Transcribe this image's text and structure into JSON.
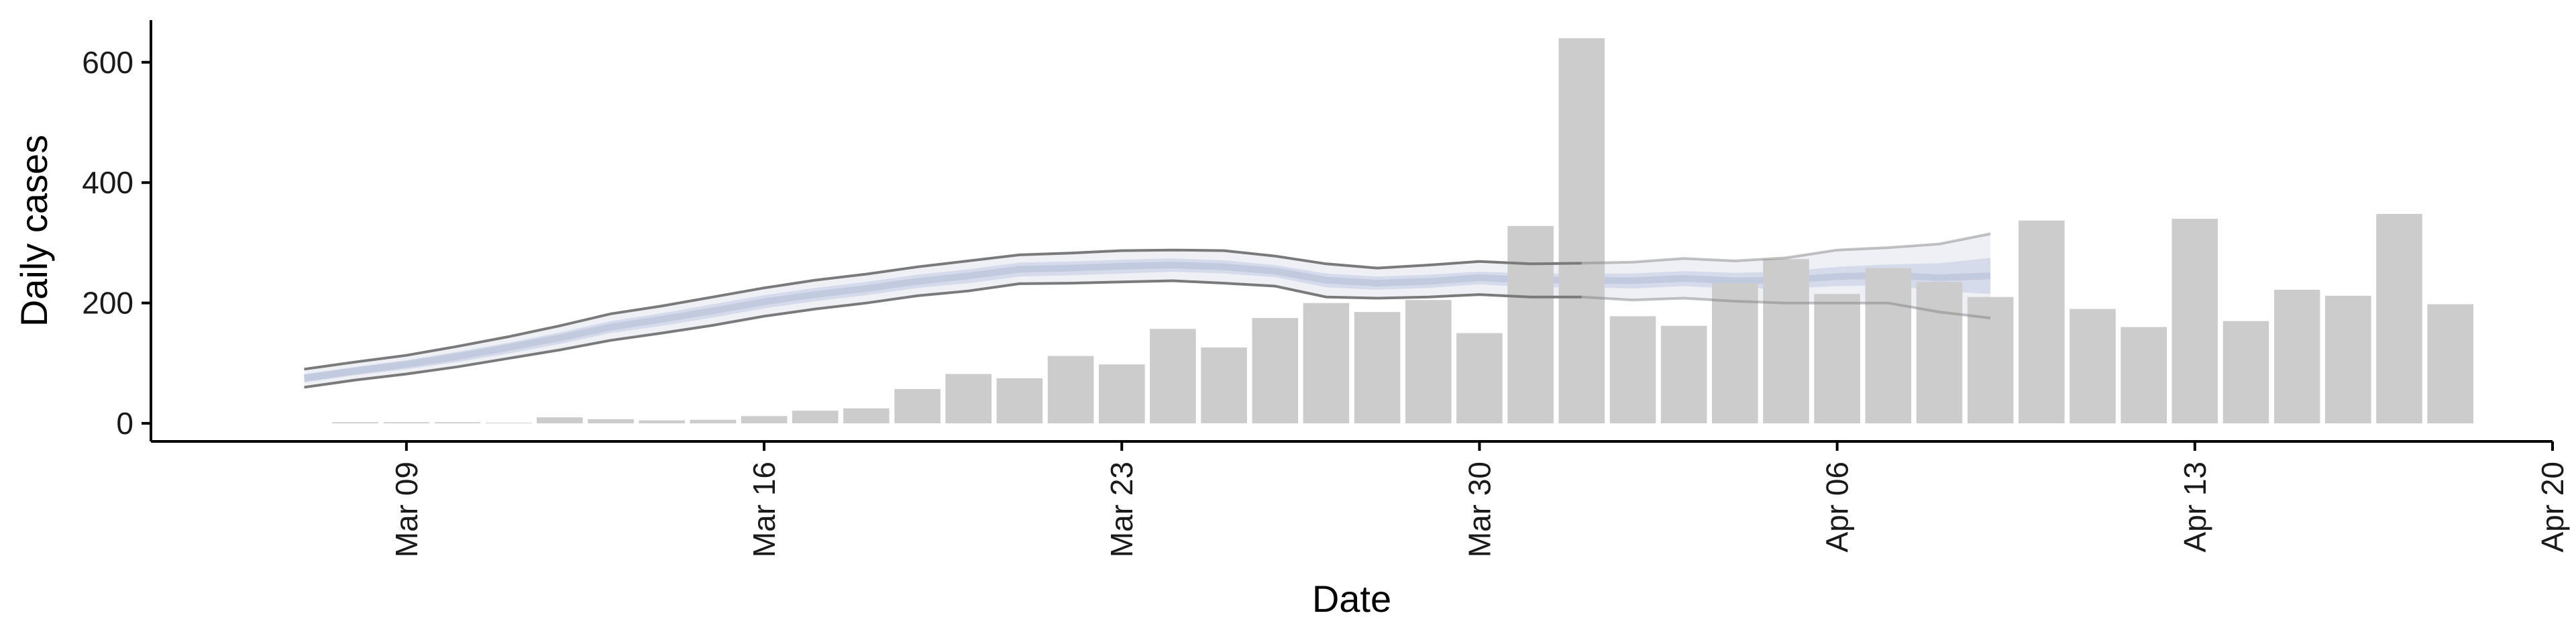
{
  "chart_data": {
    "type": "bar",
    "xlabel": "Date",
    "ylabel": "Daily cases",
    "ylim": [
      -30,
      670
    ],
    "y_ticks": [
      0,
      200,
      400,
      600
    ],
    "x_range": [
      "2020-03-04",
      "2020-04-20"
    ],
    "x_ticks": [
      {
        "date": "2020-03-09",
        "label": "Mar 09"
      },
      {
        "date": "2020-03-16",
        "label": "Mar 16"
      },
      {
        "date": "2020-03-23",
        "label": "Mar 23"
      },
      {
        "date": "2020-03-30",
        "label": "Mar 30"
      },
      {
        "date": "2020-04-06",
        "label": "Apr 06"
      },
      {
        "date": "2020-04-13",
        "label": "Apr 13"
      },
      {
        "date": "2020-04-20",
        "label": "Apr 20"
      }
    ],
    "bars": {
      "color": "#cccccc",
      "dates": [
        "2020-03-08",
        "2020-03-09",
        "2020-03-10",
        "2020-03-11",
        "2020-03-12",
        "2020-03-13",
        "2020-03-14",
        "2020-03-15",
        "2020-03-16",
        "2020-03-17",
        "2020-03-18",
        "2020-03-19",
        "2020-03-20",
        "2020-03-21",
        "2020-03-22",
        "2020-03-23",
        "2020-03-24",
        "2020-03-25",
        "2020-03-26",
        "2020-03-27",
        "2020-03-28",
        "2020-03-29",
        "2020-03-30",
        "2020-03-31",
        "2020-04-01",
        "2020-04-02",
        "2020-04-03",
        "2020-04-04",
        "2020-04-05",
        "2020-04-06",
        "2020-04-07",
        "2020-04-08",
        "2020-04-09",
        "2020-04-10",
        "2020-04-11",
        "2020-04-12",
        "2020-04-13",
        "2020-04-14",
        "2020-04-15",
        "2020-04-16",
        "2020-04-17",
        "2020-04-18"
      ],
      "values": [
        2,
        2,
        2,
        1,
        10,
        7,
        5,
        6,
        12,
        21,
        25,
        57,
        82,
        75,
        112,
        98,
        157,
        126,
        175,
        200,
        185,
        205,
        150,
        328,
        640,
        178,
        162,
        233,
        273,
        215,
        258,
        235,
        210,
        337,
        190,
        160,
        340,
        170,
        222,
        212,
        348,
        198
      ]
    },
    "estimate_band": {
      "dates": [
        "2020-03-07",
        "2020-03-08",
        "2020-03-09",
        "2020-03-10",
        "2020-03-11",
        "2020-03-12",
        "2020-03-13",
        "2020-03-14",
        "2020-03-15",
        "2020-03-16",
        "2020-03-17",
        "2020-03-18",
        "2020-03-19",
        "2020-03-20",
        "2020-03-21",
        "2020-03-22",
        "2020-03-23",
        "2020-03-24",
        "2020-03-25",
        "2020-03-26",
        "2020-03-27",
        "2020-03-28",
        "2020-03-29",
        "2020-03-30",
        "2020-03-31",
        "2020-04-01",
        "2020-04-02",
        "2020-04-03",
        "2020-04-04",
        "2020-04-05",
        "2020-04-06",
        "2020-04-07",
        "2020-04-08",
        "2020-04-09"
      ],
      "upper": [
        90,
        102,
        113,
        128,
        144,
        162,
        182,
        195,
        210,
        225,
        238,
        248,
        260,
        270,
        280,
        283,
        287,
        288,
        287,
        278,
        265,
        258,
        263,
        269,
        265,
        266,
        268,
        274,
        270,
        275,
        288,
        292,
        298,
        315
      ],
      "lower": [
        60,
        72,
        82,
        94,
        108,
        122,
        138,
        150,
        163,
        178,
        190,
        200,
        212,
        220,
        232,
        233,
        235,
        237,
        233,
        228,
        210,
        208,
        210,
        214,
        210,
        210,
        205,
        208,
        203,
        200,
        200,
        200,
        185,
        175
      ],
      "median": [
        75,
        87,
        98,
        111,
        126,
        142,
        160,
        173,
        187,
        202,
        214,
        224,
        236,
        245,
        256,
        258,
        261,
        263,
        260,
        253,
        238,
        233,
        236,
        242,
        238,
        238,
        237,
        241,
        237,
        238,
        244,
        246,
        242,
        245
      ],
      "inner_upper": [
        82,
        94,
        105,
        119,
        134,
        151,
        170,
        183,
        198,
        213,
        225,
        235,
        247,
        256,
        267,
        269,
        272,
        274,
        271,
        263,
        249,
        244,
        247,
        252,
        249,
        249,
        249,
        253,
        250,
        252,
        260,
        264,
        266,
        275
      ],
      "inner_lower": [
        68,
        80,
        90,
        102,
        116,
        132,
        150,
        162,
        176,
        191,
        203,
        213,
        225,
        233,
        244,
        246,
        249,
        252,
        249,
        243,
        226,
        222,
        225,
        231,
        226,
        226,
        224,
        228,
        224,
        224,
        228,
        229,
        220,
        215
      ],
      "projection_start": "2020-04-01",
      "outer_fill": "#eef0f6",
      "inner_fill": "#d5dbea",
      "median_color": "#c2cadf",
      "line_color": "#7a7a7a"
    }
  }
}
